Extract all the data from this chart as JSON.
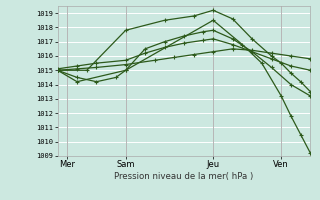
{
  "bg_color": "#cce8e0",
  "grid_color": "#ffffff",
  "line_color": "#2d5a1b",
  "xlabel": "Pression niveau de la mer( hPa )",
  "ylim": [
    1009,
    1019.5
  ],
  "xlim": [
    0,
    13.0
  ],
  "yticks": [
    1009,
    1010,
    1011,
    1012,
    1013,
    1014,
    1015,
    1016,
    1017,
    1018,
    1019
  ],
  "xtick_labels": [
    "Mer",
    "Sam",
    "Jeu",
    "Ven"
  ],
  "xtick_positions": [
    0.5,
    3.5,
    8.0,
    11.5
  ],
  "vlines": [
    0.5,
    3.5,
    8.0,
    11.5
  ],
  "series": [
    {
      "x": [
        0.0,
        1.0,
        2.0,
        3.5,
        5.0,
        6.0,
        7.0,
        8.0,
        9.0,
        10.0,
        11.0,
        12.0,
        13.0
      ],
      "y": [
        1015.0,
        1015.1,
        1015.2,
        1015.4,
        1015.7,
        1015.9,
        1016.1,
        1016.3,
        1016.5,
        1016.4,
        1016.2,
        1016.0,
        1015.8
      ]
    },
    {
      "x": [
        0.0,
        1.0,
        2.0,
        3.5,
        4.5,
        5.5,
        6.5,
        7.5,
        8.0,
        9.0,
        10.0,
        11.0,
        12.0,
        13.0
      ],
      "y": [
        1015.1,
        1015.3,
        1015.5,
        1015.7,
        1016.2,
        1016.6,
        1016.9,
        1017.1,
        1017.2,
        1016.8,
        1016.3,
        1015.8,
        1015.3,
        1015.0
      ]
    },
    {
      "x": [
        0.0,
        1.0,
        2.0,
        3.0,
        3.5,
        4.5,
        5.5,
        6.5,
        7.5,
        8.0,
        9.0,
        10.0,
        11.0,
        12.0,
        13.0
      ],
      "y": [
        1015.0,
        1014.5,
        1014.2,
        1014.5,
        1015.0,
        1016.5,
        1017.0,
        1017.4,
        1017.7,
        1017.8,
        1017.2,
        1016.3,
        1015.2,
        1014.0,
        1013.2
      ]
    },
    {
      "x": [
        0.0,
        1.5,
        3.5,
        5.5,
        7.0,
        8.0,
        9.0,
        10.0,
        11.0,
        11.5,
        12.0,
        12.5,
        13.0
      ],
      "y": [
        1015.0,
        1015.0,
        1017.8,
        1018.5,
        1018.8,
        1019.2,
        1018.6,
        1017.2,
        1016.0,
        1015.5,
        1014.8,
        1014.2,
        1013.5
      ]
    },
    {
      "x": [
        0.0,
        1.0,
        3.5,
        8.0,
        9.5,
        10.5,
        11.5,
        12.0,
        12.5,
        13.0
      ],
      "y": [
        1015.0,
        1014.2,
        1015.0,
        1018.5,
        1016.8,
        1015.5,
        1013.2,
        1011.8,
        1010.5,
        1009.2
      ]
    }
  ]
}
